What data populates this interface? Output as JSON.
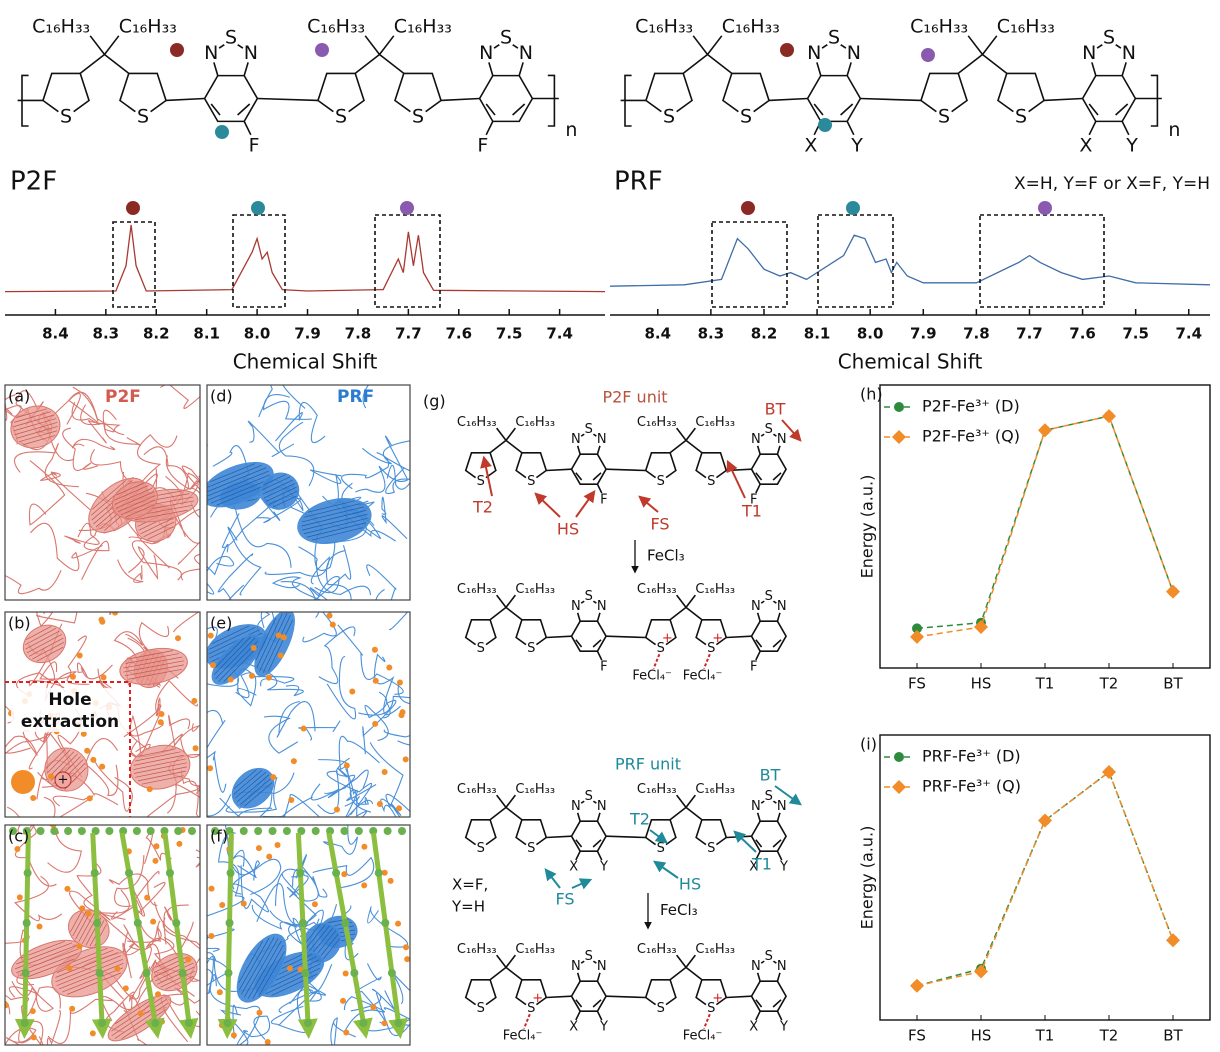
{
  "chart_data": [
    {
      "type": "line",
      "x_label": "Chemical Shift",
      "color": "#a83a32",
      "x": [
        8.5,
        8.28,
        8.26,
        8.25,
        8.24,
        8.22,
        8.05,
        8.01,
        8.0,
        7.99,
        7.98,
        7.97,
        7.95,
        7.9,
        7.75,
        7.72,
        7.71,
        7.7,
        7.69,
        7.68,
        7.67,
        7.65,
        7.31
      ],
      "values": [
        0.02,
        0.03,
        0.4,
        1.0,
        0.4,
        0.03,
        0.05,
        0.6,
        0.8,
        0.5,
        0.6,
        0.3,
        0.05,
        0.03,
        0.05,
        0.5,
        0.3,
        0.9,
        0.4,
        0.85,
        0.3,
        0.04,
        0.02
      ],
      "xlim": [
        8.5,
        7.31
      ],
      "ylim": [
        0,
        1
      ],
      "xticks": [
        8.4,
        8.3,
        8.2,
        8.1,
        {
          "value": 8,
          "label": "8.0"
        },
        7.9,
        7.8,
        7.7,
        7.6,
        7.5,
        7.4
      ]
    },
    {
      "type": "line",
      "x_label": "Chemical Shift",
      "color": "#3f6ea8",
      "x": [
        8.49,
        8.35,
        8.28,
        8.25,
        8.23,
        8.2,
        8.17,
        8.15,
        8.12,
        8.05,
        8.03,
        8.01,
        7.99,
        7.97,
        7.96,
        7.95,
        7.93,
        7.9,
        7.8,
        7.72,
        7.7,
        7.68,
        7.64,
        7.6,
        7.55,
        7.5,
        7.36
      ],
      "values": [
        0.1,
        0.12,
        0.2,
        0.8,
        0.65,
        0.35,
        0.25,
        0.3,
        0.2,
        0.55,
        0.85,
        0.8,
        0.45,
        0.5,
        0.3,
        0.45,
        0.25,
        0.15,
        0.15,
        0.45,
        0.55,
        0.45,
        0.3,
        0.2,
        0.25,
        0.15,
        0.12
      ],
      "xlim": [
        8.49,
        7.36
      ],
      "ylim": [
        0,
        1
      ],
      "xticks": [
        8.4,
        8.3,
        8.2,
        8.1,
        {
          "value": 8,
          "label": "8.0"
        },
        7.9,
        7.8,
        7.7,
        7.6,
        7.5,
        7.4
      ]
    },
    {
      "type": "energy",
      "panel": "(h)",
      "y_label": "Energy (a.u.)",
      "legend": "upper-left",
      "categories": [
        "FS",
        "HS",
        "T1",
        "T2",
        "BT"
      ],
      "ylim": [
        0,
        1
      ],
      "series": [
        {
          "name": "P2F-Fe³⁺ (D)",
          "color": "#2e8b3e",
          "marker": "circle",
          "values": [
            0.14,
            0.16,
            0.84,
            0.89,
            0.27
          ]
        },
        {
          "name": "P2F-Fe³⁺ (Q)",
          "color": "#f28c28",
          "marker": "diamond",
          "values": [
            0.11,
            0.145,
            0.84,
            0.89,
            0.27
          ]
        }
      ]
    },
    {
      "type": "energy",
      "panel": "(i)",
      "y_label": "Energy (a.u.)",
      "legend": "upper-left",
      "categories": [
        "FS",
        "HS",
        "T1",
        "T2",
        "BT"
      ],
      "ylim": [
        0,
        1
      ],
      "series": [
        {
          "name": "PRF-Fe³⁺ (D)",
          "color": "#2e8b3e",
          "marker": "circle",
          "values": [
            0.12,
            0.18,
            0.7,
            0.87,
            0.28
          ]
        },
        {
          "name": "PRF-Fe³⁺ (Q)",
          "color": "#f28c28",
          "marker": "diamond",
          "values": [
            0.12,
            0.17,
            0.7,
            0.87,
            0.28
          ]
        }
      ]
    }
  ],
  "structures": {
    "p2f_polymer": {
      "name": "P2F",
      "repeat": "n",
      "units": [
        {
          "alkyl": [
            "C₁₆H₃₃",
            "C₁₆H₃₃"
          ],
          "thiophene": [
            "S",
            "S"
          ],
          "btd": [
            "N",
            "S",
            "N"
          ],
          "sub_right": "F"
        },
        {
          "alkyl": [
            "C₁₆H₃₃",
            "C₁₆H₃₃"
          ],
          "thiophene": [
            "S",
            "S"
          ],
          "btd": [
            "N",
            "S",
            "N"
          ],
          "sub_left": "F"
        }
      ]
    },
    "prf_polymer": {
      "name": "PRF",
      "note": "X=H, Y=F or X=F, Y=H",
      "repeat": "n",
      "units": [
        {
          "alkyl": [
            "C₁₆H₃₃",
            "C₁₆H₃₃"
          ],
          "thiophene": [
            "S",
            "S"
          ],
          "btd": [
            "N",
            "S",
            "N"
          ],
          "sub_left": "X",
          "sub_right": "Y"
        },
        {
          "alkyl": [
            "C₁₆H₃₃",
            "C₁₆H₃₃"
          ],
          "thiophene": [
            "S",
            "S"
          ],
          "btd": [
            "N",
            "S",
            "N"
          ],
          "sub_left": "X",
          "sub_right": "Y"
        }
      ]
    },
    "g_p2f": {
      "panel": "(g)",
      "title": "P2F unit",
      "sites": [
        "T2",
        "HS",
        "FS",
        "T1",
        "BT"
      ],
      "reagent": "FeCl₃",
      "units": [
        {
          "alkyl": [
            "C₁₆H₃₃",
            "C₁₆H₃₃"
          ],
          "thiophene": [
            "S",
            "S"
          ],
          "btd": [
            "N",
            "S",
            "N"
          ],
          "sub_right": "F"
        },
        {
          "alkyl": [
            "C₁₆H₃₃",
            "C₁₆H₃₃"
          ],
          "thiophene": [
            "S",
            "S"
          ],
          "btd": [
            "N",
            "S",
            "N"
          ],
          "sub_left": "F"
        }
      ]
    },
    "g_p2f_ox": {
      "units": [
        {
          "alkyl": [
            "C₁₆H₃₃",
            "C₁₆H₃₃"
          ],
          "thiophene": [
            "S",
            "S"
          ],
          "btd": [
            "N",
            "S",
            "N"
          ],
          "sub_right": "F"
        },
        {
          "alkyl": [
            "C₁₆H₃₃",
            "C₁₆H₃₃"
          ],
          "thiophene": [
            "S",
            "S"
          ],
          "btd": [
            "N",
            "S",
            "N"
          ],
          "sub_left": "F",
          "ox_left": {
            "charge": "+",
            "counterion": "FeCl₄⁻"
          },
          "ox_right": {
            "charge": "+",
            "counterion": "FeCl₄⁻"
          }
        }
      ]
    },
    "g_prf": {
      "title": "PRF unit",
      "sites": [
        "T2",
        "HS",
        "FS",
        "T1",
        "BT"
      ],
      "note": [
        "X=F,",
        "Y=H"
      ],
      "reagent": "FeCl₃",
      "units": [
        {
          "alkyl": [
            "C₁₆H₃₃",
            "C₁₆H₃₃"
          ],
          "thiophene": [
            "S",
            "S"
          ],
          "btd": [
            "N",
            "S",
            "N"
          ],
          "sub_left": "X",
          "sub_right": "Y"
        },
        {
          "alkyl": [
            "C₁₆H₃₃",
            "C₁₆H₃₃"
          ],
          "thiophene": [
            "S",
            "S"
          ],
          "btd": [
            "N",
            "S",
            "N"
          ],
          "sub_left": "X",
          "sub_right": "Y"
        }
      ]
    },
    "g_prf_ox": {
      "units": [
        {
          "alkyl": [
            "C₁₆H₃₃",
            "C₁₆H₃₃"
          ],
          "thiophene": [
            "S",
            "S"
          ],
          "btd": [
            "N",
            "S",
            "N"
          ],
          "sub_left": "X",
          "sub_right": "Y",
          "ox_right": {
            "charge": "+",
            "counterion": "FeCl₄⁻"
          }
        },
        {
          "alkyl": [
            "C₁₆H₃₃",
            "C₁₆H₃₃"
          ],
          "thiophene": [
            "S",
            "S"
          ],
          "btd": [
            "N",
            "S",
            "N"
          ],
          "sub_left": "X",
          "sub_right": "Y",
          "ox_right": {
            "charge": "+",
            "counterion": "FeCl₄⁻"
          }
        }
      ]
    }
  },
  "panels": [
    {
      "label": "(a)",
      "title": "P2F"
    },
    {
      "label": "(b)",
      "annotation": [
        "Hole",
        "extraction"
      ],
      "charge": "+"
    },
    {
      "label": "(c)"
    },
    {
      "label": "(d)",
      "title": "PRF"
    },
    {
      "label": "(e)"
    },
    {
      "label": "(f)"
    }
  ]
}
